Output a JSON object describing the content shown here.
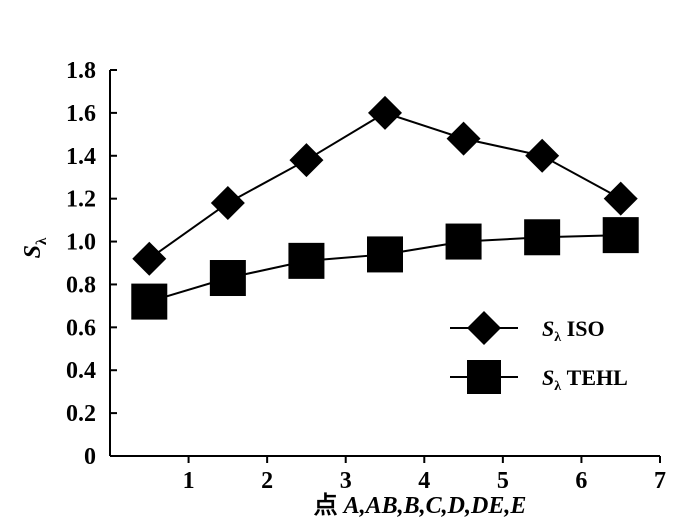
{
  "chart_data": {
    "type": "line",
    "title": "",
    "xlabel_prefix": "点 ",
    "xlabel_main": "A,AB,B,C,D,DE,E",
    "ylabel_main": "S",
    "ylabel_sub": "λ",
    "xlim": [
      0,
      7
    ],
    "ylim": [
      0,
      1.8
    ],
    "xticks": [
      1,
      2,
      3,
      4,
      5,
      6,
      7
    ],
    "yticks": [
      "0",
      "0.2",
      "0.4",
      "0.6",
      "0.8",
      "1.0",
      "1.2",
      "1.4",
      "1.6",
      "1.8"
    ],
    "grid": false,
    "legend_position": "bottom-right",
    "x": [
      0.5,
      1.5,
      2.5,
      3.5,
      4.5,
      5.5,
      6.5
    ],
    "series": [
      {
        "name_main": "S",
        "name_sub": "λ",
        "name_suffix": " ISO",
        "marker": "diamond",
        "values": [
          0.92,
          1.18,
          1.38,
          1.6,
          1.48,
          1.4,
          1.2
        ]
      },
      {
        "name_main": "S",
        "name_sub": "λ",
        "name_suffix": " TEHL",
        "marker": "square",
        "values": [
          0.72,
          0.83,
          0.91,
          0.94,
          1.0,
          1.02,
          1.03
        ]
      }
    ],
    "color": "#000000"
  }
}
